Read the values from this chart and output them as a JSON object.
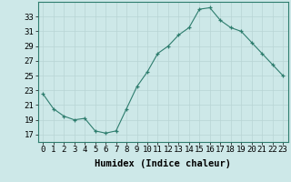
{
  "x": [
    0,
    1,
    2,
    3,
    4,
    5,
    6,
    7,
    8,
    9,
    10,
    11,
    12,
    13,
    14,
    15,
    16,
    17,
    18,
    19,
    20,
    21,
    22,
    23
  ],
  "y": [
    22.5,
    20.5,
    19.5,
    19.0,
    19.2,
    17.5,
    17.2,
    17.5,
    20.5,
    23.5,
    25.5,
    28.0,
    29.0,
    30.5,
    31.5,
    34.0,
    34.2,
    32.5,
    31.5,
    31.0,
    29.5,
    28.0,
    26.5,
    25.0
  ],
  "xlabel": "Humidex (Indice chaleur)",
  "ylim": [
    16,
    35
  ],
  "yticks": [
    17,
    19,
    21,
    23,
    25,
    27,
    29,
    31,
    33
  ],
  "xticks": [
    0,
    1,
    2,
    3,
    4,
    5,
    6,
    7,
    8,
    9,
    10,
    11,
    12,
    13,
    14,
    15,
    16,
    17,
    18,
    19,
    20,
    21,
    22,
    23
  ],
  "line_color": "#2e7d6e",
  "marker": "+",
  "bg_color": "#cde8e8",
  "grid_color": "#b8d4d4",
  "xlabel_fontsize": 7.5,
  "tick_fontsize": 6.5
}
